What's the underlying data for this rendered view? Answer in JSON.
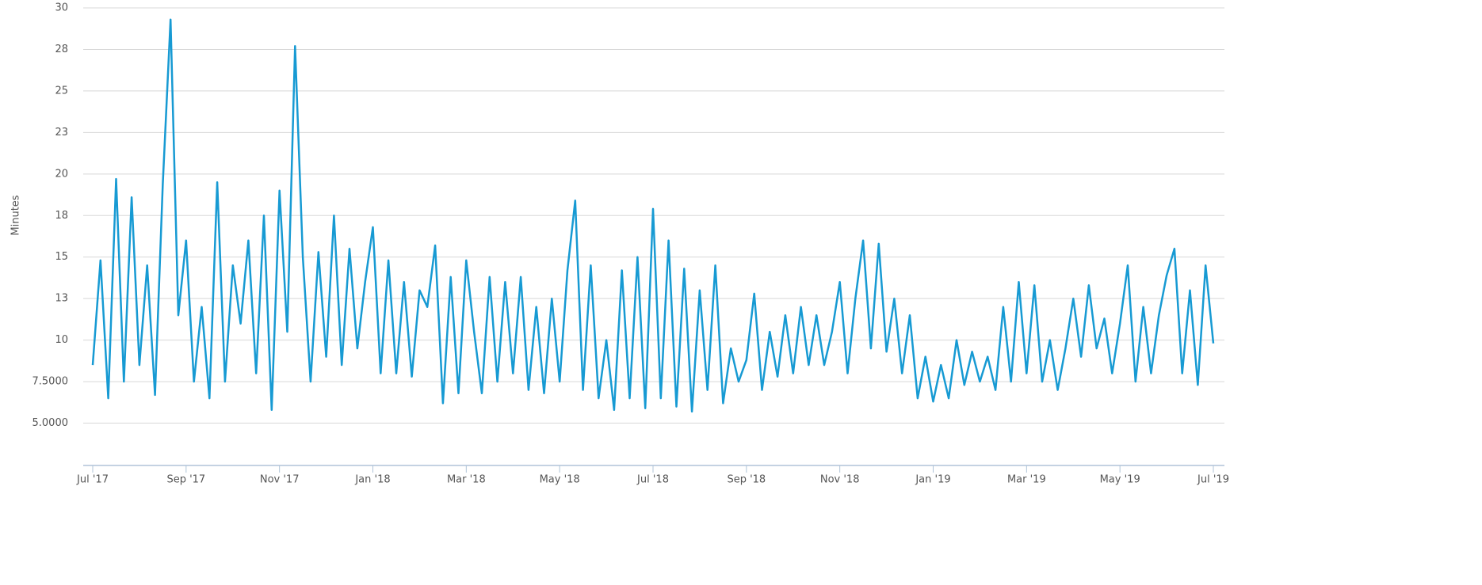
{
  "chart_data": {
    "type": "line",
    "y_label": "Minutes",
    "color": "#179ad3",
    "grid": true,
    "ylim": [
      2.5,
      30
    ],
    "yticks": [
      {
        "value": 5,
        "label": "5.0000"
      },
      {
        "value": 7.5,
        "label": "7.5000"
      },
      10,
      {
        "value": 12.5,
        "label": "13"
      },
      15,
      {
        "value": 17.5,
        "label": "18"
      },
      20,
      {
        "value": 22.5,
        "label": "23"
      },
      25,
      {
        "value": 27.5,
        "label": "28"
      },
      30
    ],
    "categories": [
      "Jul '17",
      null,
      null,
      null,
      null,
      null,
      null,
      null,
      null,
      null,
      null,
      null,
      "Sep '17",
      null,
      null,
      null,
      null,
      null,
      null,
      null,
      null,
      null,
      null,
      null,
      "Nov '17",
      null,
      null,
      null,
      null,
      null,
      null,
      null,
      null,
      null,
      null,
      null,
      "Jan '18",
      null,
      null,
      null,
      null,
      null,
      null,
      null,
      null,
      null,
      null,
      null,
      "Mar '18",
      null,
      null,
      null,
      null,
      null,
      null,
      null,
      null,
      null,
      null,
      null,
      "May '18",
      null,
      null,
      null,
      null,
      null,
      null,
      null,
      null,
      null,
      null,
      null,
      "Jul '18",
      null,
      null,
      null,
      null,
      null,
      null,
      null,
      null,
      null,
      null,
      null,
      "Sep '18",
      null,
      null,
      null,
      null,
      null,
      null,
      null,
      null,
      null,
      null,
      null,
      "Nov '18",
      null,
      null,
      null,
      null,
      null,
      null,
      null,
      null,
      null,
      null,
      null,
      "Jan '19",
      null,
      null,
      null,
      null,
      null,
      null,
      null,
      null,
      null,
      null,
      null,
      "Mar '19",
      null,
      null,
      null,
      null,
      null,
      null,
      null,
      null,
      null,
      null,
      null,
      "May '19",
      null,
      null,
      null,
      null,
      null,
      null,
      null,
      null,
      null,
      null,
      null,
      "Jul '19"
    ],
    "values": [
      8.5,
      14.8,
      6.5,
      19.7,
      7.5,
      18.6,
      8.5,
      14.5,
      6.7,
      19.4,
      29.3,
      11.5,
      16,
      7.5,
      12,
      6.5,
      19.5,
      7.5,
      14.5,
      11,
      16,
      8,
      17.5,
      5.8,
      19,
      10.5,
      27.7,
      15,
      7.5,
      15.3,
      9,
      17.5,
      8.5,
      15.5,
      9.5,
      13.5,
      16.8,
      8,
      14.8,
      8,
      13.5,
      7.8,
      13,
      12,
      15.7,
      6.2,
      13.8,
      6.8,
      14.8,
      10.5,
      6.8,
      13.8,
      7.5,
      13.5,
      8,
      13.8,
      7,
      12,
      6.8,
      12.5,
      7.5,
      14.2,
      18.4,
      7,
      14.5,
      6.5,
      10,
      5.8,
      14.2,
      6.5,
      15,
      5.9,
      17.9,
      6.5,
      16,
      6,
      14.3,
      5.7,
      13,
      7,
      14.5,
      6.2,
      9.5,
      7.5,
      8.8,
      12.8,
      7,
      10.5,
      7.8,
      11.5,
      8,
      12,
      8.5,
      11.5,
      8.5,
      10.5,
      13.5,
      8,
      12.5,
      16,
      9.5,
      15.8,
      9.3,
      12.5,
      8,
      11.5,
      6.5,
      9,
      6.3,
      8.5,
      6.5,
      10,
      7.3,
      9.3,
      7.5,
      9,
      7,
      12,
      7.5,
      13.5,
      8,
      13.3,
      7.5,
      10,
      7,
      9.5,
      12.5,
      9,
      13.3,
      9.5,
      11.3,
      8,
      11,
      14.5,
      7.5,
      12,
      8,
      11.5,
      13.9,
      15.5,
      8,
      13,
      7.3,
      14.5,
      9.8
    ]
  }
}
